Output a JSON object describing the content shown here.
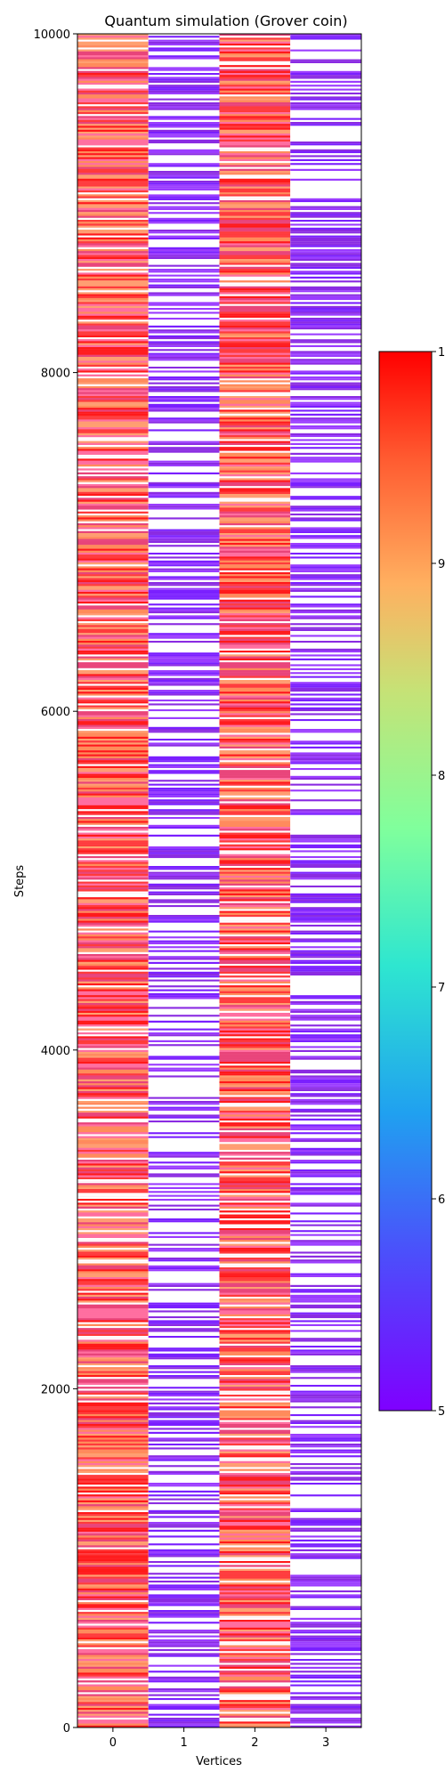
{
  "chart_data": {
    "type": "heatmap",
    "title": "Quantum simulation (Grover coin)",
    "xlabel": "Vertices",
    "ylabel": "Steps",
    "x_categories": [
      "0",
      "1",
      "2",
      "3"
    ],
    "ylim": [
      0,
      10000
    ],
    "y_ticks": [
      "0",
      "2000",
      "4000",
      "6000",
      "8000",
      "10000"
    ],
    "colormap": "rainbow",
    "colorbar": {
      "tick_labels": [
        "5",
        "6",
        "7",
        "8",
        "9",
        "1"
      ]
    },
    "band_summary": [
      {
        "vertex": "0",
        "dominant": "high values (red / orange / pink stripes)"
      },
      {
        "vertex": "1",
        "dominant": "low values (violet / white stripes)"
      },
      {
        "vertex": "2",
        "dominant": "high values (red / orange / pink stripes)"
      },
      {
        "vertex": "3",
        "dominant": "low values (violet / white stripes)"
      }
    ],
    "colors": {
      "high": "#ff1a1a",
      "mid_high": "#ff8c5a",
      "pink": "#ff6fa0",
      "low": "#7a1fff",
      "background": "#ffffff"
    }
  }
}
